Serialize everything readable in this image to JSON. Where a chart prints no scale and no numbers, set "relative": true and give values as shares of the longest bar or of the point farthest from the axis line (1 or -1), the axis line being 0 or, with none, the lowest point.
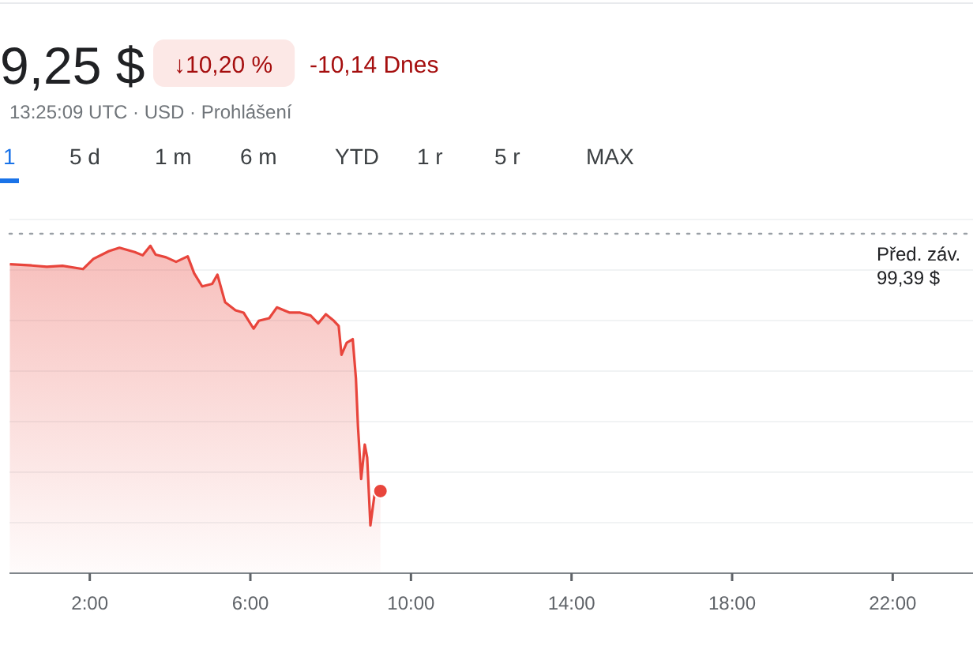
{
  "chart_data": {
    "type": "area",
    "relative": true,
    "grid": "y",
    "line_style": "solid",
    "marker": "none",
    "annotations": [
      "9,25 $",
      "↓10,20 %",
      "-10,14 Dnes",
      "13:25:09 UTC · USD · Prohlášení",
      "1",
      "5 d",
      "1 m",
      "6 m",
      "YTD",
      "1 r",
      "5 r",
      "MAX"
    ],
    "xlim": [
      0,
      24
    ],
    "xticks": [
      {
        "value": 2,
        "label": "2:00"
      },
      {
        "value": 6,
        "label": "6:00"
      },
      {
        "value": 10,
        "label": "10:00"
      },
      {
        "value": 14,
        "label": "14:00"
      },
      {
        "value": 18,
        "label": "18:00"
      },
      {
        "value": 22,
        "label": "22:00"
      }
    ],
    "ref_lines": [
      {
        "axis": "y",
        "value": 1.037,
        "label": "Před. záv.\n99,39 $",
        "color": "#9aa0a6",
        "line_style": "dotted"
      }
    ],
    "series": [
      {
        "color": "#e8453c",
        "x": [
          0.01,
          0.55,
          0.93,
          1.32,
          1.83,
          2.09,
          2.48,
          2.74,
          3.12,
          3.32,
          3.51,
          3.64,
          3.9,
          4.15,
          4.44,
          4.6,
          4.8,
          5.05,
          5.18,
          5.37,
          5.63,
          5.83,
          6.08,
          6.21,
          6.47,
          6.66,
          6.98,
          7.24,
          7.5,
          7.69,
          7.88,
          8.08,
          8.2,
          8.27,
          8.4,
          8.55,
          8.63,
          8.68,
          8.76,
          8.85,
          8.91,
          8.99,
          9.11,
          9.24
        ],
        "values": [
          0.944,
          0.94,
          0.936,
          0.939,
          0.929,
          0.96,
          0.984,
          0.994,
          0.981,
          0.971,
          1,
          0.973,
          0.965,
          0.951,
          0.968,
          0.916,
          0.876,
          0.884,
          0.912,
          0.828,
          0.803,
          0.796,
          0.747,
          0.771,
          0.779,
          0.812,
          0.796,
          0.796,
          0.787,
          0.763,
          0.791,
          0.771,
          0.755,
          0.667,
          0.704,
          0.715,
          0.594,
          0.449,
          0.288,
          0.393,
          0.353,
          0.146,
          0.256,
          0.251
        ]
      }
    ]
  }
}
